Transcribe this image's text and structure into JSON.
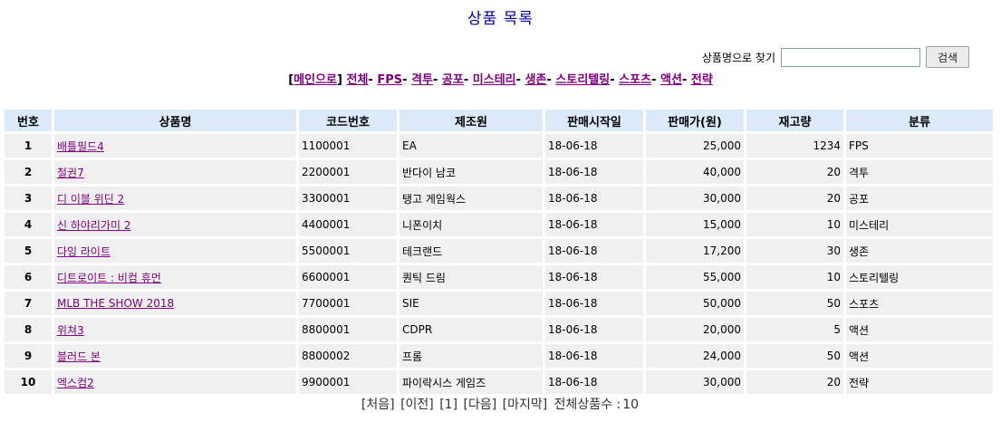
{
  "page": {
    "title": "상품 목록"
  },
  "search": {
    "label": "상품명으로 찾기",
    "value": "",
    "button": "검색"
  },
  "nav": {
    "main": "메인으로",
    "categories": [
      "전체",
      "FPS",
      "격투",
      "공포",
      "미스테리",
      "생존",
      "스토리텔링",
      "스포츠",
      "액션",
      "전략"
    ]
  },
  "table": {
    "headers": [
      "번호",
      "상품명",
      "코드번호",
      "제조원",
      "판매시작일",
      "판매가(원)",
      "재고량",
      "분류"
    ],
    "rows": [
      [
        "1",
        "배틀필드4",
        "1100001",
        "EA",
        "18-06-18",
        "25,000",
        "1234",
        "FPS"
      ],
      [
        "2",
        "철권7",
        "2200001",
        "반다이 남코",
        "18-06-18",
        "40,000",
        "20",
        "격투"
      ],
      [
        "3",
        "디 이블 위딘 2",
        "3300001",
        "탱고 게임웍스",
        "18-06-18",
        "30,000",
        "20",
        "공포"
      ],
      [
        "4",
        "신 하야리가미 2",
        "4400001",
        "니폰이치",
        "18-06-18",
        "15,000",
        "10",
        "미스테리"
      ],
      [
        "5",
        "다잉 라이트",
        "5500001",
        "테크랜드",
        "18-06-18",
        "17,200",
        "30",
        "생존"
      ],
      [
        "6",
        "디트로이트 : 비컴 휴먼",
        "6600001",
        "퀀틱 드림",
        "18-06-18",
        "55,000",
        "10",
        "스토리텔링"
      ],
      [
        "7",
        "MLB THE SHOW 2018",
        "7700001",
        "SIE",
        "18-06-18",
        "50,000",
        "50",
        "스포츠"
      ],
      [
        "8",
        "위쳐3",
        "8800001",
        "CDPR",
        "18-06-18",
        "20,000",
        "5",
        "액션"
      ],
      [
        "9",
        "블러드 본",
        "8800002",
        "프롬",
        "18-06-18",
        "24,000",
        "50",
        "액션"
      ],
      [
        "10",
        "엑스컴2",
        "9900001",
        "파이락시스 게임즈",
        "18-06-18",
        "30,000",
        "20",
        "전략"
      ]
    ]
  },
  "pagination": {
    "first": "[처음]",
    "prev": "[이전]",
    "current": "[1]",
    "next": "[다음]",
    "last": "[마지막]",
    "total_label": "전체상품수 :",
    "total": "10"
  }
}
